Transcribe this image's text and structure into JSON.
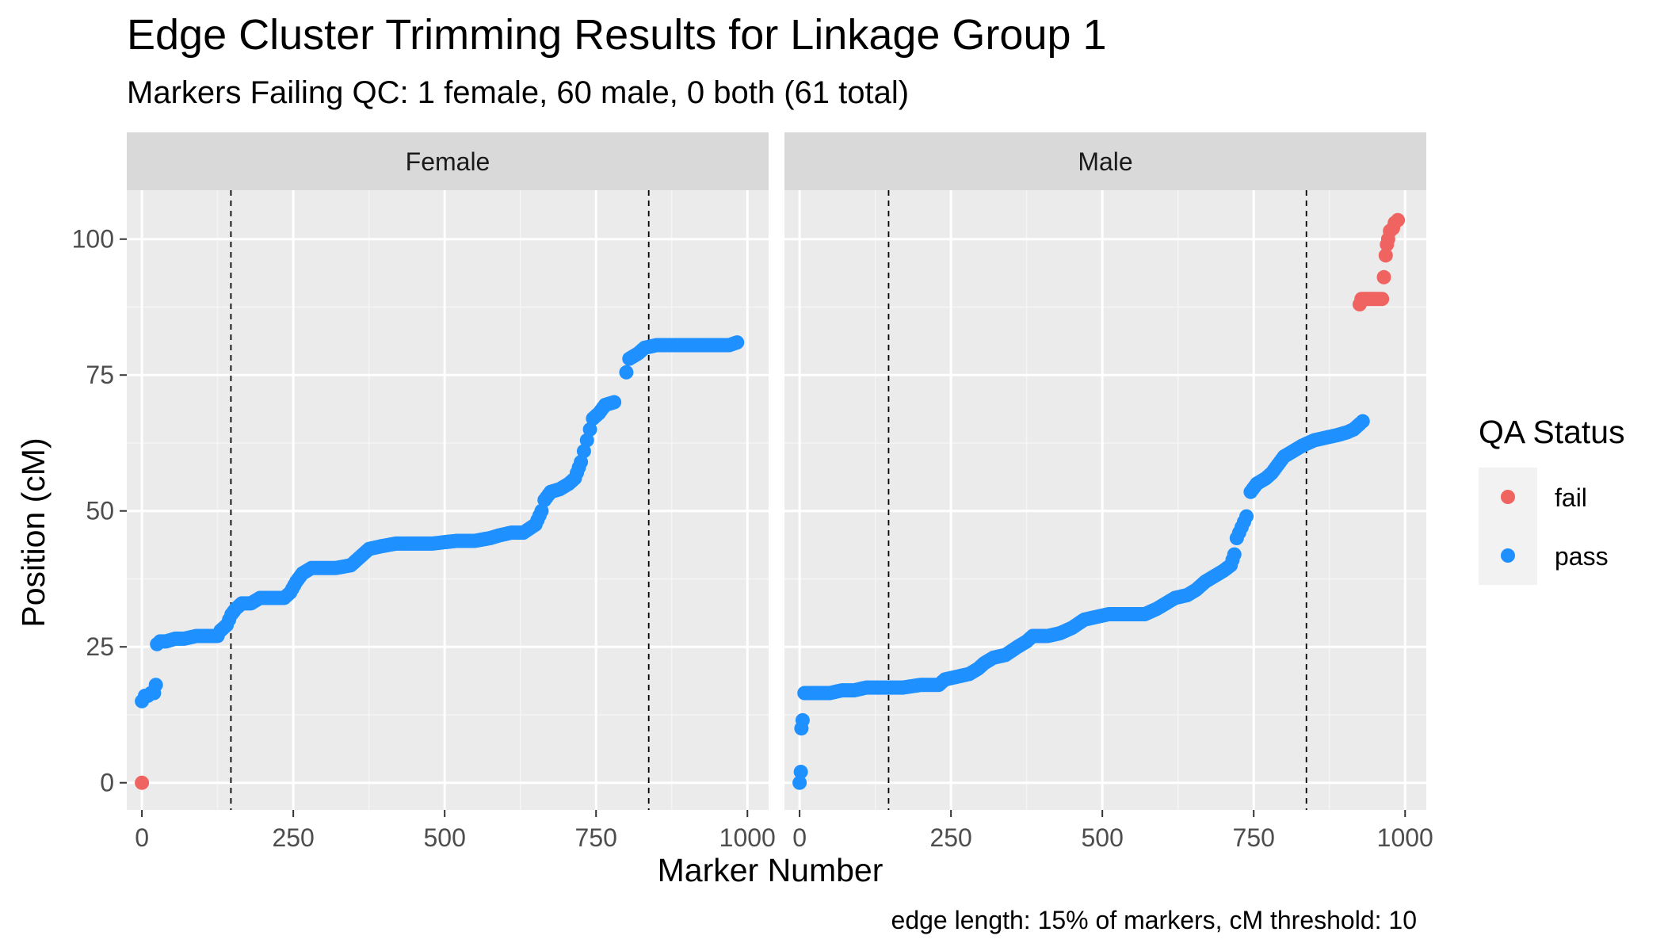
{
  "chart_data": {
    "type": "scatter",
    "title": "Edge Cluster Trimming Results for Linkage Group 1",
    "subtitle": "Markers Failing QC: 1 female, 60 male, 0 both (61 total)",
    "xlabel": "Marker Number",
    "ylabel": "Position (cM)",
    "caption": "edge length: 15% of markers, cM threshold: 10",
    "xlim": [
      -25,
      1035
    ],
    "ylim": [
      -5,
      109
    ],
    "x_ticks": [
      0,
      250,
      500,
      750,
      1000
    ],
    "x_tick_labels": [
      "0",
      "250",
      "500",
      "750",
      "1000"
    ],
    "y_ticks": [
      0,
      25,
      50,
      75,
      100
    ],
    "y_tick_labels": [
      "0",
      "25",
      "50",
      "75",
      "100"
    ],
    "grid": true,
    "legend": {
      "title": "QA Status",
      "position": "right",
      "entries": [
        {
          "name": "fail",
          "color": "#EF6460"
        },
        {
          "name": "pass",
          "color": "#1E90FF"
        }
      ]
    },
    "panels": [
      {
        "name": "Female",
        "vlines": [
          147,
          837
        ],
        "series": [
          {
            "name": "fail",
            "points": [
              [
                0,
                0
              ]
            ]
          },
          {
            "name": "pass",
            "points": [
              [
                0,
                15
              ],
              [
                5,
                16
              ],
              [
                10,
                16
              ],
              [
                15,
                16.5
              ],
              [
                20,
                16.5
              ],
              [
                23,
                18
              ],
              [
                25,
                25.5
              ],
              [
                30,
                26
              ],
              [
                40,
                26
              ],
              [
                55,
                26.5
              ],
              [
                70,
                26.5
              ],
              [
                90,
                27
              ],
              [
                110,
                27
              ],
              [
                125,
                27
              ],
              [
                130,
                28
              ],
              [
                140,
                29
              ],
              [
                148,
                31
              ],
              [
                155,
                32
              ],
              [
                165,
                33
              ],
              [
                180,
                33
              ],
              [
                195,
                34
              ],
              [
                215,
                34
              ],
              [
                235,
                34
              ],
              [
                245,
                35
              ],
              [
                255,
                37
              ],
              [
                265,
                38.5
              ],
              [
                280,
                39.5
              ],
              [
                300,
                39.5
              ],
              [
                320,
                39.5
              ],
              [
                345,
                40
              ],
              [
                360,
                41.5
              ],
              [
                375,
                43
              ],
              [
                395,
                43.5
              ],
              [
                420,
                44
              ],
              [
                450,
                44
              ],
              [
                480,
                44
              ],
              [
                520,
                44.5
              ],
              [
                550,
                44.5
              ],
              [
                575,
                45
              ],
              [
                590,
                45.5
              ],
              [
                610,
                46
              ],
              [
                630,
                46
              ],
              [
                650,
                47.5
              ],
              [
                660,
                50
              ],
              [
                665,
                52
              ],
              [
                675,
                53.5
              ],
              [
                690,
                54
              ],
              [
                705,
                55
              ],
              [
                715,
                56
              ],
              [
                725,
                59
              ],
              [
                730,
                61
              ],
              [
                735,
                63
              ],
              [
                740,
                65
              ],
              [
                745,
                67
              ],
              [
                755,
                68
              ],
              [
                765,
                69.5
              ],
              [
                780,
                70
              ],
              [
                800,
                75.5
              ],
              [
                805,
                78
              ],
              [
                820,
                79
              ],
              [
                830,
                80
              ],
              [
                850,
                80.5
              ],
              [
                880,
                80.5
              ],
              [
                910,
                80.5
              ],
              [
                940,
                80.5
              ],
              [
                970,
                80.5
              ],
              [
                983,
                81
              ]
            ]
          }
        ]
      },
      {
        "name": "Male",
        "vlines": [
          147,
          837
        ],
        "series": [
          {
            "name": "fail",
            "points": [
              [
                925,
                88
              ],
              [
                928,
                89
              ],
              [
                935,
                89
              ],
              [
                945,
                89
              ],
              [
                955,
                89
              ],
              [
                962,
                89
              ],
              [
                965,
                93
              ],
              [
                968,
                97
              ],
              [
                970,
                99
              ],
              [
                972,
                100
              ],
              [
                975,
                101.5
              ],
              [
                980,
                102
              ],
              [
                983,
                103
              ],
              [
                988,
                103.5
              ]
            ]
          },
          {
            "name": "pass",
            "points": [
              [
                0,
                0
              ],
              [
                2,
                2
              ],
              [
                3,
                10
              ],
              [
                5,
                11.5
              ],
              [
                8,
                16.5
              ],
              [
                15,
                16.5
              ],
              [
                30,
                16.5
              ],
              [
                50,
                16.5
              ],
              [
                70,
                17
              ],
              [
                90,
                17
              ],
              [
                110,
                17.5
              ],
              [
                140,
                17.5
              ],
              [
                170,
                17.5
              ],
              [
                200,
                18
              ],
              [
                230,
                18
              ],
              [
                240,
                19
              ],
              [
                260,
                19.5
              ],
              [
                280,
                20
              ],
              [
                295,
                21
              ],
              [
                305,
                22
              ],
              [
                320,
                23
              ],
              [
                340,
                23.5
              ],
              [
                360,
                25
              ],
              [
                375,
                26
              ],
              [
                385,
                27
              ],
              [
                410,
                27
              ],
              [
                430,
                27.5
              ],
              [
                450,
                28.5
              ],
              [
                470,
                30
              ],
              [
                490,
                30.5
              ],
              [
                510,
                31
              ],
              [
                540,
                31
              ],
              [
                570,
                31
              ],
              [
                590,
                32
              ],
              [
                605,
                33
              ],
              [
                620,
                34
              ],
              [
                640,
                34.5
              ],
              [
                655,
                35.5
              ],
              [
                670,
                37
              ],
              [
                685,
                38
              ],
              [
                700,
                39
              ],
              [
                712,
                40
              ],
              [
                718,
                42
              ],
              [
                722,
                45
              ],
              [
                730,
                47
              ],
              [
                738,
                49
              ],
              [
                745,
                53.5
              ],
              [
                755,
                55
              ],
              [
                770,
                56
              ],
              [
                780,
                57
              ],
              [
                790,
                58.5
              ],
              [
                800,
                60
              ],
              [
                815,
                61
              ],
              [
                830,
                62
              ],
              [
                850,
                63
              ],
              [
                870,
                63.5
              ],
              [
                890,
                64
              ],
              [
                905,
                64.5
              ],
              [
                915,
                65
              ],
              [
                925,
                66
              ],
              [
                930,
                66.5
              ]
            ]
          }
        ]
      }
    ]
  }
}
